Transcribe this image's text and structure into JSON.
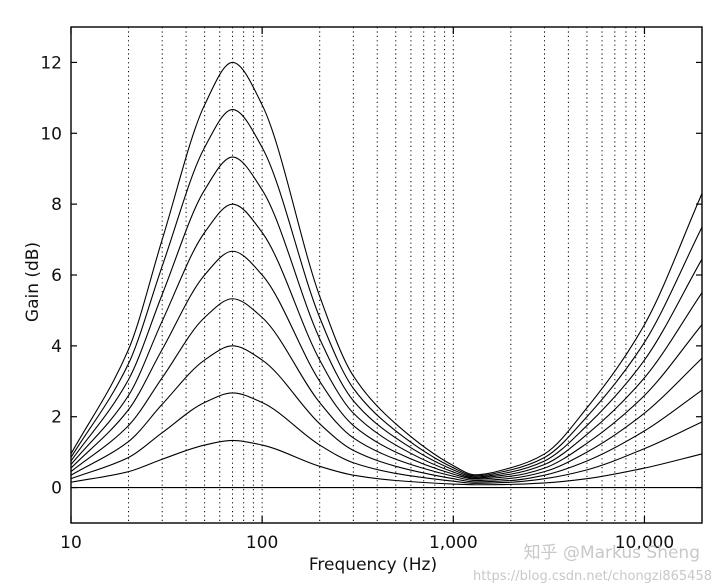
{
  "chart_data": {
    "type": "line",
    "title": "",
    "xlabel": "Frequency (Hz)",
    "ylabel": "Gain (dB)",
    "x_scale": "log",
    "xlim": [
      10,
      20000
    ],
    "ylim": [
      -1,
      13
    ],
    "grid": "dotted vertical",
    "x_tick_values": [
      10,
      100,
      1000,
      10000
    ],
    "x_tick_labels": [
      "10",
      "100",
      "1,000",
      "10,000"
    ],
    "y_tick_values": [
      0,
      2,
      4,
      6,
      8,
      10,
      12
    ],
    "y_tick_labels": [
      "0",
      "2",
      "4",
      "6",
      "8",
      "10",
      "12"
    ],
    "x": [
      10,
      20,
      30,
      50,
      70,
      100,
      200,
      300,
      500,
      1000,
      1300,
      2000,
      3000,
      5000,
      10000,
      20000
    ],
    "series": [
      {
        "values": [
          0,
          0,
          0,
          0,
          0,
          0,
          0,
          0,
          0,
          0,
          0,
          0,
          0,
          0,
          0,
          0
        ]
      },
      {
        "values": [
          0.15,
          0.45,
          0.8,
          1.2,
          1.33,
          1.2,
          0.6,
          0.35,
          0.2,
          0.1,
          0.08,
          0.09,
          0.13,
          0.25,
          0.55,
          0.95
        ]
      },
      {
        "values": [
          0.25,
          0.85,
          1.55,
          2.4,
          2.67,
          2.4,
          1.2,
          0.7,
          0.4,
          0.18,
          0.12,
          0.15,
          0.25,
          0.5,
          1.1,
          1.85
        ]
      },
      {
        "values": [
          0.35,
          1.3,
          2.35,
          3.6,
          4.0,
          3.6,
          1.8,
          1.05,
          0.6,
          0.25,
          0.16,
          0.2,
          0.35,
          0.75,
          1.6,
          2.75
        ]
      },
      {
        "values": [
          0.45,
          1.75,
          3.1,
          4.8,
          5.33,
          4.8,
          2.4,
          1.4,
          0.8,
          0.32,
          0.2,
          0.26,
          0.45,
          1.0,
          2.1,
          3.65
        ]
      },
      {
        "values": [
          0.55,
          2.2,
          3.9,
          6.0,
          6.67,
          6.0,
          3.0,
          1.75,
          1.0,
          0.38,
          0.24,
          0.32,
          0.55,
          1.25,
          2.6,
          4.6
        ]
      },
      {
        "values": [
          0.65,
          2.6,
          4.7,
          7.2,
          8.0,
          7.2,
          3.6,
          2.1,
          1.2,
          0.44,
          0.27,
          0.38,
          0.65,
          1.5,
          3.1,
          5.5
        ]
      },
      {
        "values": [
          0.75,
          3.05,
          5.45,
          8.4,
          9.33,
          8.4,
          4.2,
          2.45,
          1.4,
          0.5,
          0.3,
          0.44,
          0.75,
          1.75,
          3.6,
          6.45
        ]
      },
      {
        "values": [
          0.85,
          3.5,
          6.25,
          9.6,
          10.67,
          9.6,
          4.8,
          2.8,
          1.6,
          0.56,
          0.33,
          0.5,
          0.85,
          2.0,
          4.1,
          7.35
        ]
      },
      {
        "values": [
          0.95,
          3.9,
          7.0,
          10.8,
          12.0,
          10.8,
          5.4,
          3.15,
          1.8,
          0.62,
          0.36,
          0.56,
          0.95,
          2.25,
          4.6,
          8.3
        ]
      }
    ]
  },
  "watermark": {
    "line1": "知乎 @Markus Sheng",
    "line2": "https://blog.csdn.net/chongzi865458"
  }
}
